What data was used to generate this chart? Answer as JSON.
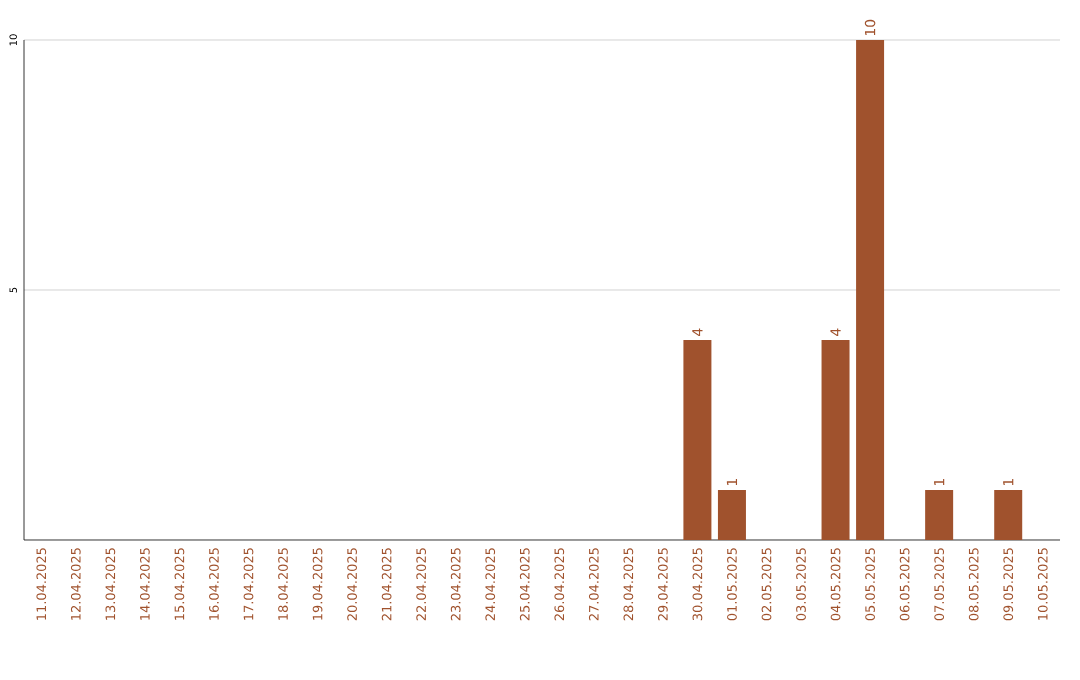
{
  "chart_data": {
    "type": "bar",
    "categories": [
      "11.04.2025",
      "12.04.2025",
      "13.04.2025",
      "14.04.2025",
      "15.04.2025",
      "16.04.2025",
      "17.04.2025",
      "18.04.2025",
      "19.04.2025",
      "20.04.2025",
      "21.04.2025",
      "22.04.2025",
      "23.04.2025",
      "24.04.2025",
      "25.04.2025",
      "26.04.2025",
      "27.04.2025",
      "28.04.2025",
      "29.04.2025",
      "30.04.2025",
      "01.05.2025",
      "02.05.2025",
      "03.05.2025",
      "04.05.2025",
      "05.05.2025",
      "06.05.2025",
      "07.05.2025",
      "08.05.2025",
      "09.05.2025",
      "10.05.2025"
    ],
    "values": [
      null,
      null,
      null,
      null,
      null,
      null,
      null,
      null,
      null,
      null,
      null,
      null,
      null,
      null,
      null,
      null,
      null,
      null,
      null,
      4,
      1,
      null,
      null,
      4,
      10,
      null,
      1,
      null,
      1,
      null
    ],
    "color": "#a0522d",
    "ylim": [
      0,
      10
    ],
    "yticks": [
      5,
      10
    ],
    "grid": "y",
    "data_labels": true
  }
}
